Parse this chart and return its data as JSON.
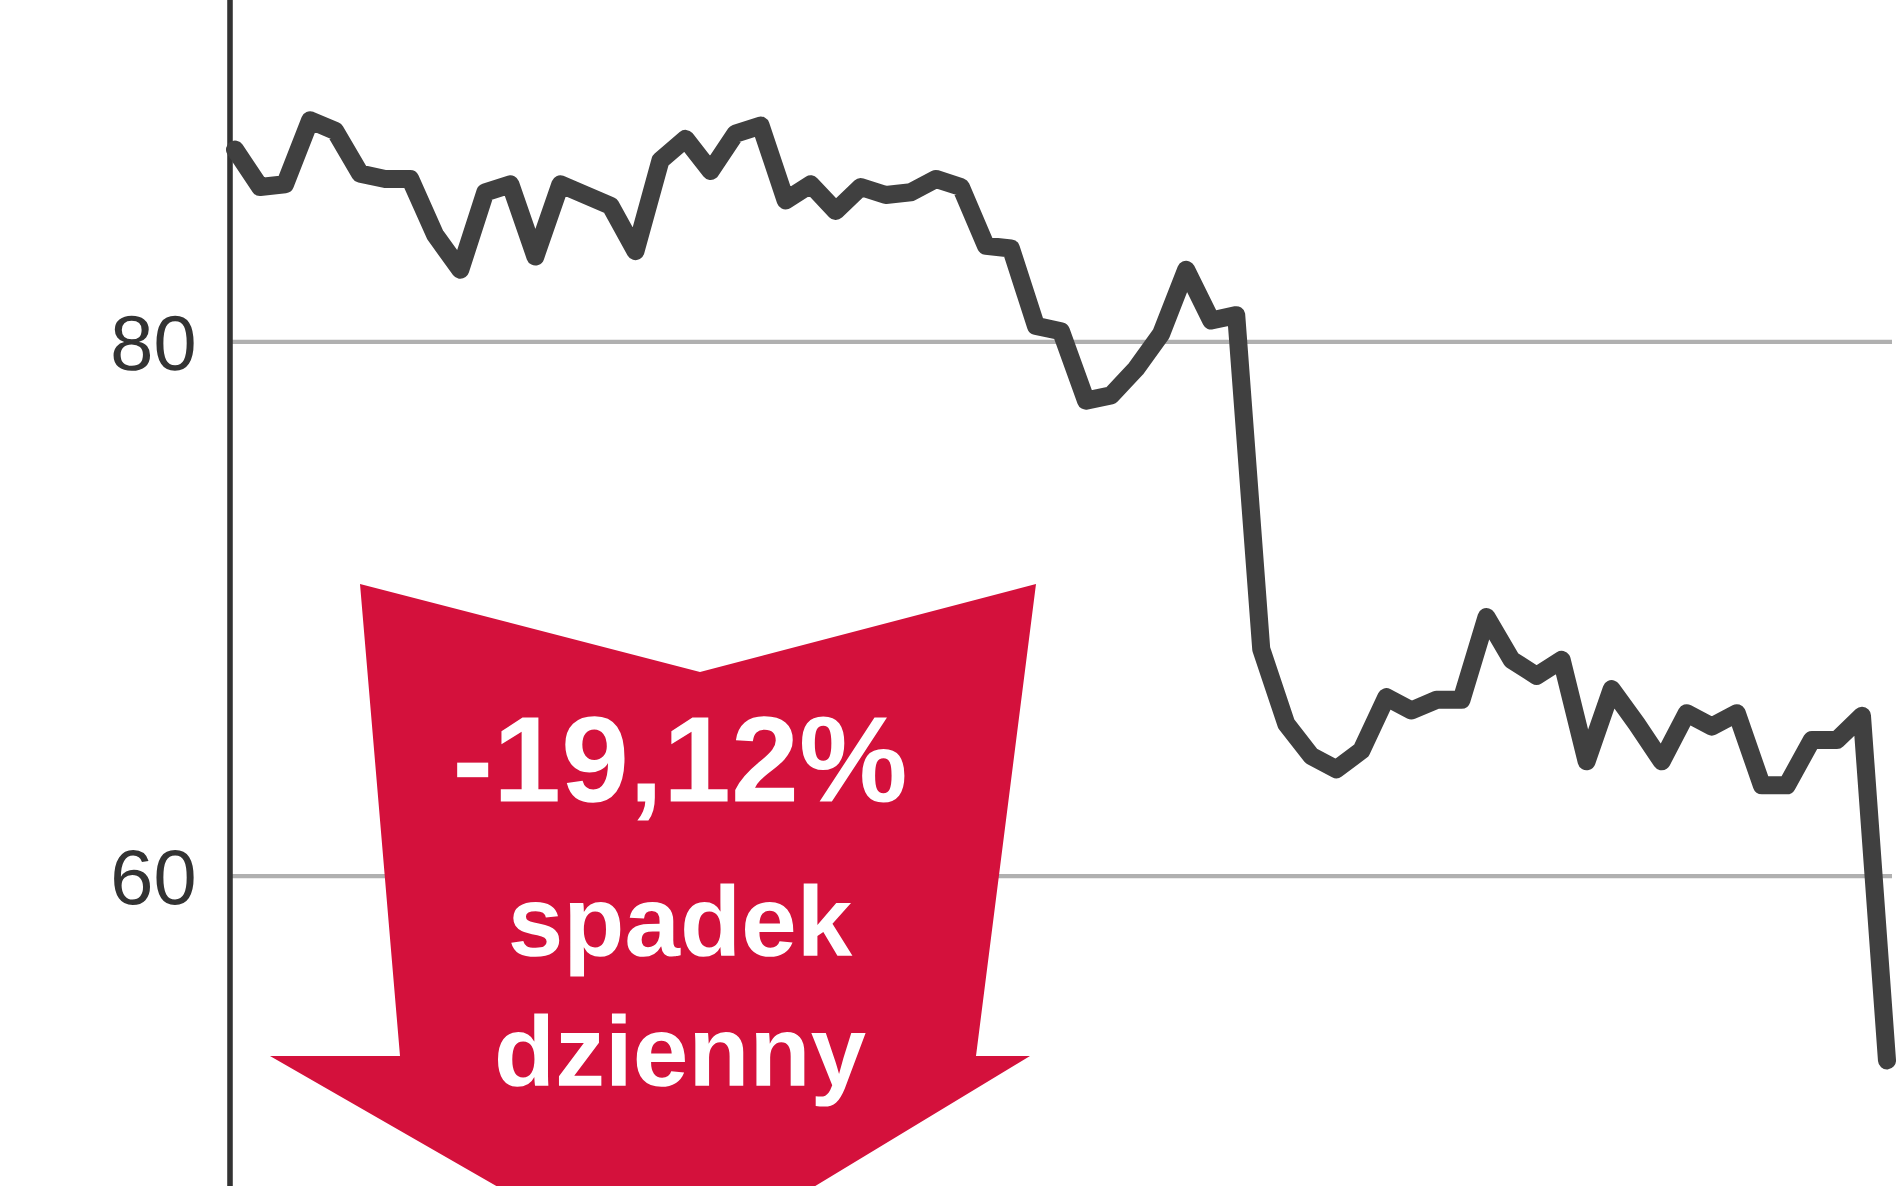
{
  "chart_data": {
    "type": "line",
    "categories": [
      null,
      null,
      null,
      null,
      null,
      null,
      null,
      null,
      null,
      null,
      null,
      null,
      null,
      null,
      null,
      null,
      null,
      null,
      null,
      null,
      null,
      null,
      null,
      null,
      null,
      null,
      null,
      null,
      null,
      null,
      null,
      null,
      null,
      null,
      null,
      null,
      null,
      null,
      null,
      null,
      null,
      null,
      null,
      null,
      null,
      null,
      null,
      null,
      null,
      null,
      null,
      null,
      null,
      null,
      null,
      null,
      null,
      null,
      null,
      null,
      null,
      null,
      null,
      null,
      null,
      null,
      null
    ],
    "series": [
      {
        "color": "#404040",
        "values": [
          87.2,
          85.8,
          85.9,
          88.3,
          87.9,
          86.3,
          86.1,
          86.1,
          84.0,
          82.7,
          85.6,
          85.9,
          83.2,
          85.9,
          85.5,
          85.1,
          83.4,
          86.8,
          87.6,
          86.4,
          87.8,
          88.1,
          85.3,
          85.9,
          84.9,
          85.8,
          85.5,
          85.6,
          86.1,
          85.8,
          83.6,
          83.5,
          80.6,
          80.4,
          77.8,
          78.0,
          79.0,
          80.3,
          82.7,
          80.8,
          81.0,
          68.5,
          65.7,
          64.5,
          64.0,
          64.7,
          66.7,
          66.2,
          66.6,
          66.6,
          69.7,
          68.1,
          67.5,
          68.1,
          64.3,
          67.0,
          65.7,
          64.3,
          66.1,
          65.6,
          66.1,
          63.4,
          63.4,
          65.1,
          65.1,
          66.0,
          53.1
        ]
      }
    ],
    "ylim": [
      48.4,
      92.8
    ],
    "yticks": [
      60,
      80
    ],
    "grid": "y",
    "legend": false,
    "tick_labels": "y",
    "marker": "none",
    "line_style": "solid",
    "annotations": [
      "-19,12%",
      "spadek",
      "dzienny"
    ]
  }
}
